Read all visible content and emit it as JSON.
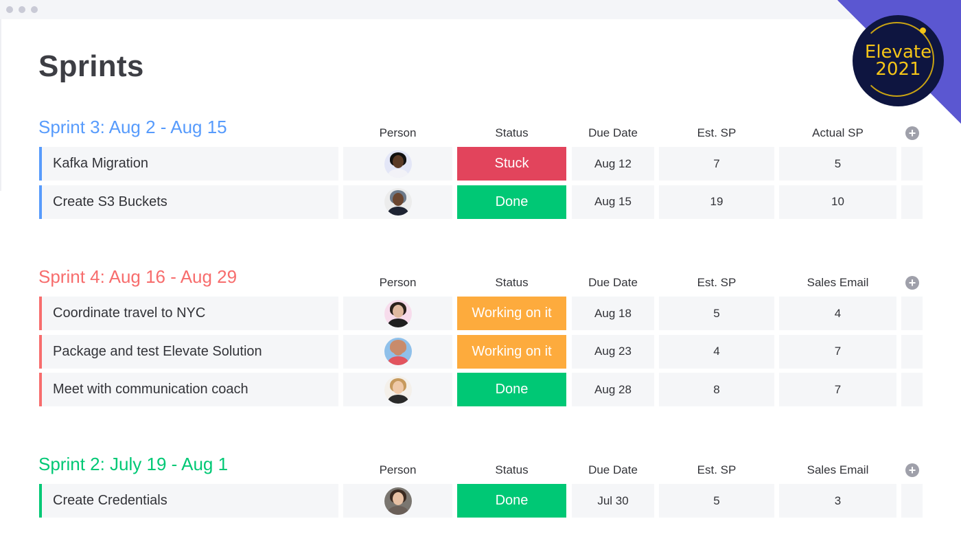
{
  "window": {
    "dots": 3
  },
  "badge": {
    "line1": "Elevate",
    "line2": "2021"
  },
  "page": {
    "title": "Sprints"
  },
  "colors": {
    "sprint3": "#579bfc",
    "sprint4": "#f76d6d",
    "sprint2": "#00c875",
    "stuck": "#e2445c",
    "done": "#00c875",
    "working": "#fdab3d",
    "cell_bg": "#f5f6f8"
  },
  "groups": [
    {
      "title": "Sprint 3: Aug 2 - Aug 15",
      "headers": {
        "person": "Person",
        "status": "Status",
        "due": "Due Date",
        "est": "Est. SP",
        "last": "Actual SP"
      },
      "rows": [
        {
          "name": "Kafka Migration",
          "avatar": "woman-glasses-avatar",
          "status": "Stuck",
          "due": "Aug 12",
          "est": "7",
          "last": "5"
        },
        {
          "name": "Create S3 Buckets",
          "avatar": "man-cap-avatar",
          "status": "Done",
          "due": "Aug 15",
          "est": "19",
          "last": "10"
        }
      ]
    },
    {
      "title": "Sprint 4: Aug 16 - Aug 29",
      "headers": {
        "person": "Person",
        "status": "Status",
        "due": "Due Date",
        "est": "Est. SP",
        "last": "Sales Email"
      },
      "rows": [
        {
          "name": "Coordinate travel to NYC",
          "avatar": "woman-dark-hair-avatar",
          "status": "Working on it",
          "due": "Aug 18",
          "est": "5",
          "last": "4"
        },
        {
          "name": "Package and test Elevate Solution",
          "avatar": "man-sunglasses-avatar",
          "status": "Working on it",
          "due": "Aug 23",
          "est": "4",
          "last": "7"
        },
        {
          "name": "Meet with communication coach",
          "avatar": "woman-blonde-avatar",
          "status": "Done",
          "due": "Aug 28",
          "est": "8",
          "last": "7"
        }
      ]
    },
    {
      "title": "Sprint 2: July 19 - Aug 1",
      "headers": {
        "person": "Person",
        "status": "Status",
        "due": "Due Date",
        "est": "Est. SP",
        "last": "Sales Email"
      },
      "rows": [
        {
          "name": "Create Credentials",
          "avatar": "woman-smiling-avatar",
          "status": "Done",
          "due": "Jul 30",
          "est": "5",
          "last": "3"
        }
      ]
    }
  ],
  "icons": {
    "add_column": "+"
  }
}
